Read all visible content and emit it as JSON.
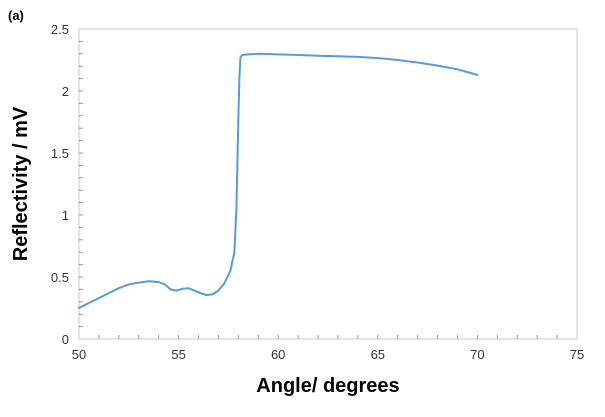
{
  "chart_data": {
    "type": "line",
    "panel_label": "(a)",
    "title": "",
    "xlabel": "Angle/ degrees",
    "ylabel": "Reflectivity / mV",
    "xlim": [
      50,
      75
    ],
    "ylim": [
      0,
      2.5
    ],
    "x_ticks": [
      50,
      55,
      60,
      65,
      70,
      75
    ],
    "y_ticks": [
      0,
      0.5,
      1,
      1.5,
      2,
      2.5
    ],
    "x_minor_step": 1,
    "y_minor_step": 0.1,
    "grid": false,
    "legend": "none",
    "series_color": "#5b9bd5",
    "series": [
      {
        "name": "",
        "x": [
          50.0,
          50.5,
          51.0,
          51.5,
          52.0,
          52.5,
          53.0,
          53.5,
          54.0,
          54.3,
          54.6,
          54.9,
          55.2,
          55.5,
          55.8,
          56.1,
          56.4,
          56.7,
          57.0,
          57.3,
          57.6,
          57.8,
          57.9,
          58.0,
          58.05,
          58.1,
          58.2,
          58.5,
          59.0,
          60.0,
          61.0,
          62.0,
          63.0,
          64.0,
          65.0,
          66.0,
          67.0,
          68.0,
          69.0,
          70.0
        ],
        "y": [
          0.25,
          0.29,
          0.33,
          0.37,
          0.41,
          0.44,
          0.455,
          0.465,
          0.46,
          0.44,
          0.4,
          0.39,
          0.405,
          0.41,
          0.39,
          0.37,
          0.355,
          0.36,
          0.39,
          0.45,
          0.55,
          0.7,
          1.05,
          1.8,
          2.1,
          2.27,
          2.29,
          2.295,
          2.3,
          2.295,
          2.29,
          2.285,
          2.28,
          2.275,
          2.265,
          2.25,
          2.23,
          2.205,
          2.175,
          2.13
        ]
      }
    ]
  }
}
